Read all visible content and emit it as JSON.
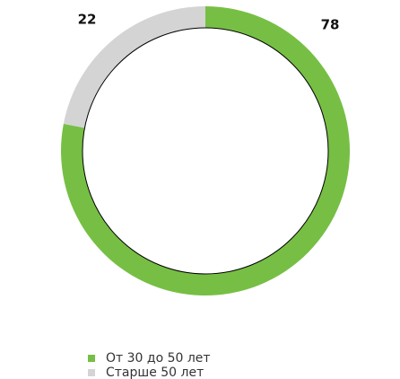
{
  "chart_data": {
    "type": "pie",
    "donut": true,
    "categories": [
      "От 30 до 50 лет",
      "Старше 50 лет"
    ],
    "values": [
      78,
      22
    ],
    "colors": [
      "#76bf44",
      "#d4d4d4"
    ]
  }
}
